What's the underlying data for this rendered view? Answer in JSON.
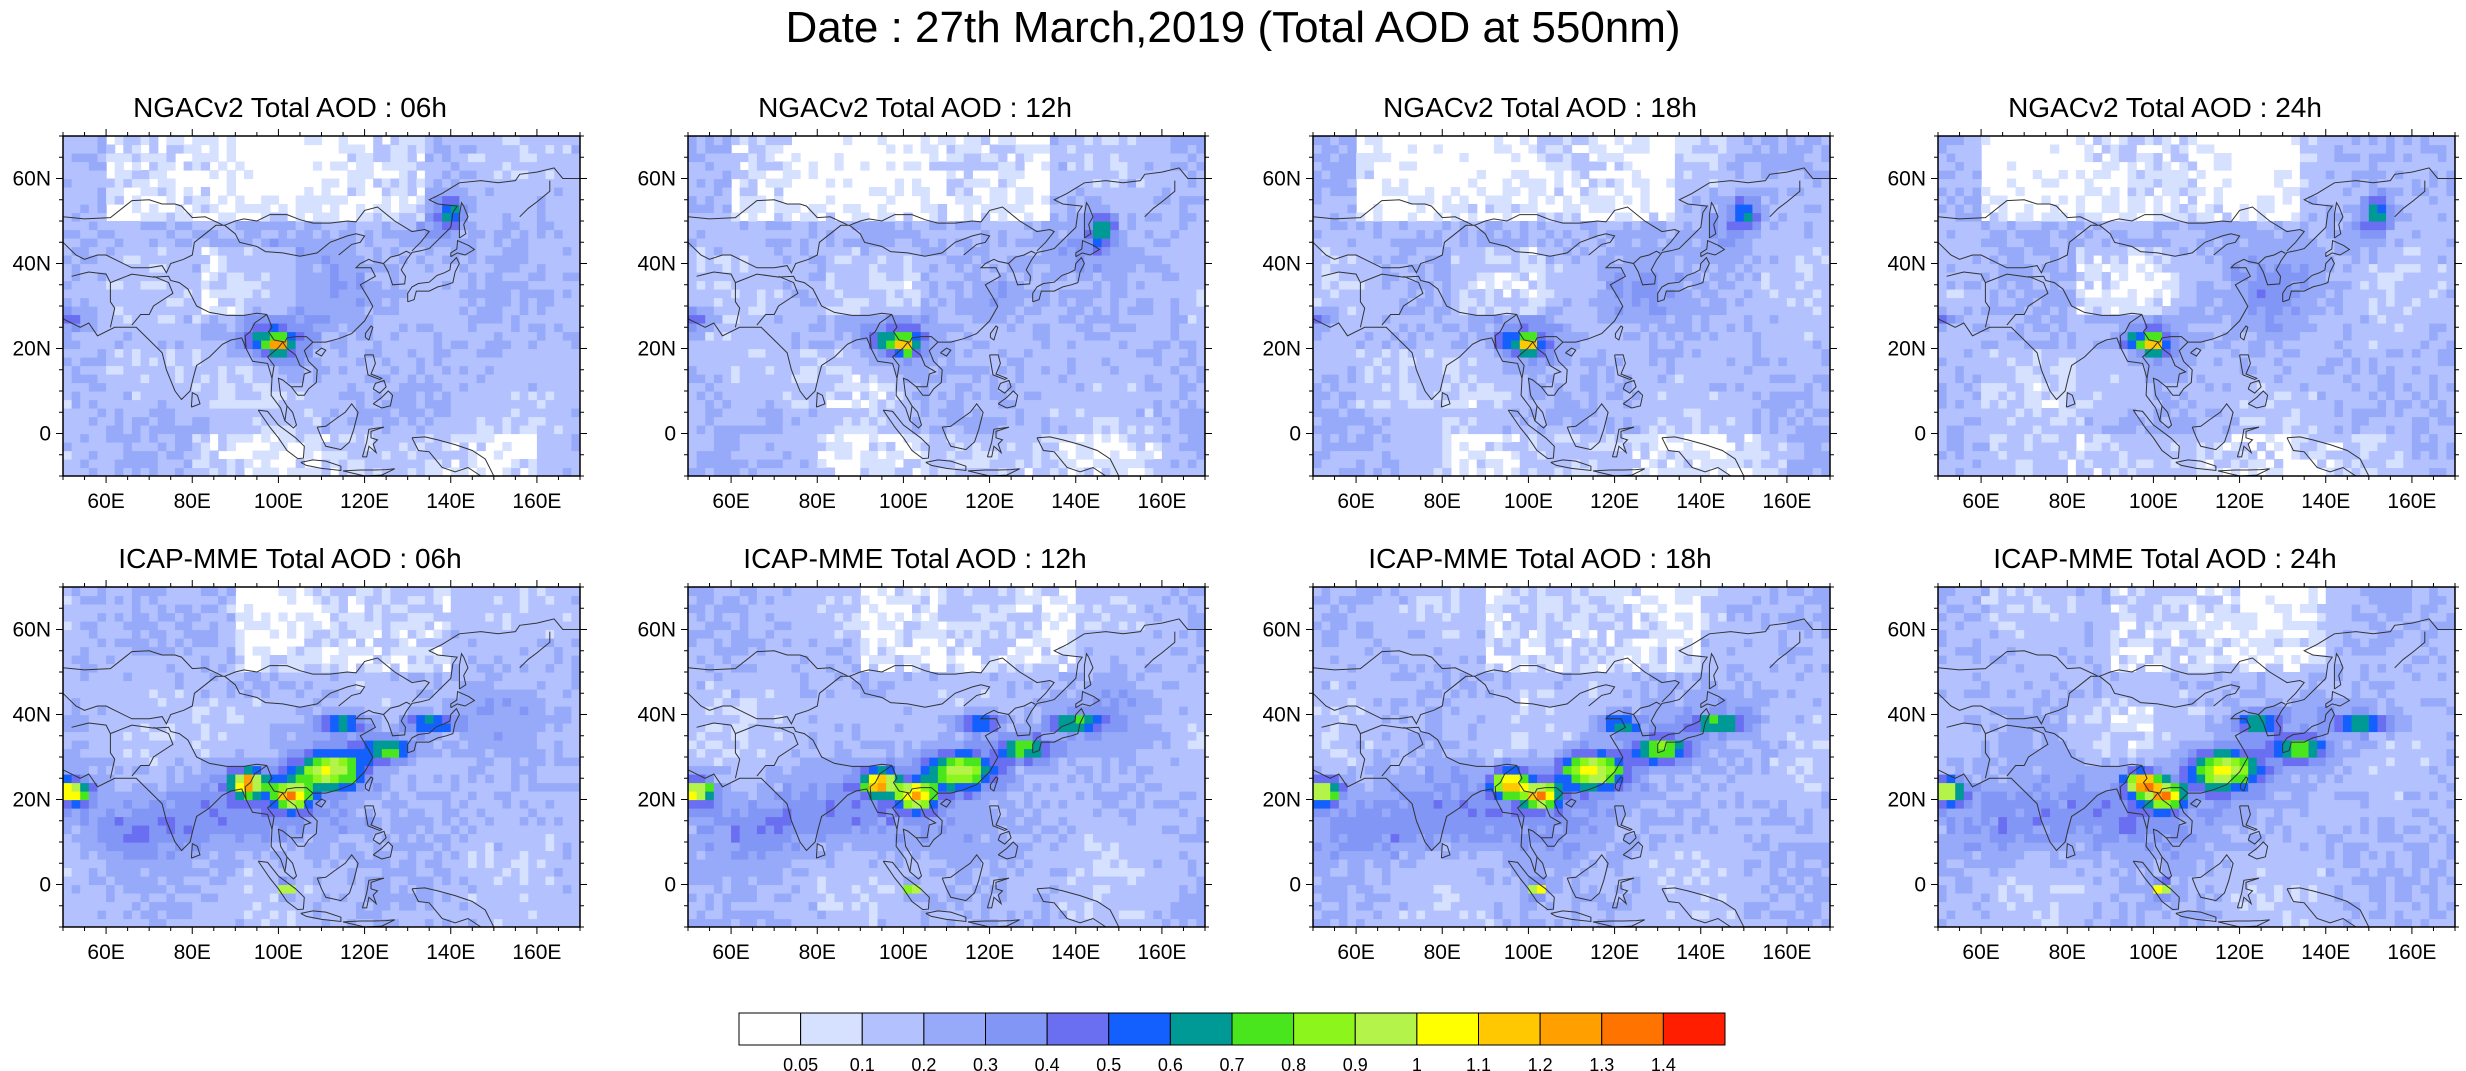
{
  "title": "Date : 27th March,2019 (Total AOD at 550nm)",
  "lat_labels": [
    "60N",
    "40N",
    "20N",
    "0"
  ],
  "lon_labels": [
    "60E",
    "80E",
    "100E",
    "120E",
    "140E",
    "160E"
  ],
  "panels": [
    {
      "title": "NGACv2 Total AOD : 06h",
      "model": "NGACv2",
      "hour": 6
    },
    {
      "title": "NGACv2 Total AOD : 12h",
      "model": "NGACv2",
      "hour": 12
    },
    {
      "title": "NGACv2 Total AOD : 18h",
      "model": "NGACv2",
      "hour": 18
    },
    {
      "title": "NGACv2 Total AOD : 24h",
      "model": "NGACv2",
      "hour": 24
    },
    {
      "title": "ICAP-MME Total AOD : 06h",
      "model": "ICAP-MME",
      "hour": 6
    },
    {
      "title": "ICAP-MME Total AOD : 12h",
      "model": "ICAP-MME",
      "hour": 12
    },
    {
      "title": "ICAP-MME Total AOD : 18h",
      "model": "ICAP-MME",
      "hour": 18
    },
    {
      "title": "ICAP-MME Total AOD : 24h",
      "model": "ICAP-MME",
      "hour": 24
    }
  ],
  "colorbar": {
    "labels": [
      "0.05",
      "0.1",
      "0.2",
      "0.3",
      "0.4",
      "0.5",
      "0.6",
      "0.7",
      "0.8",
      "0.9",
      "1",
      "1.1",
      "1.2",
      "1.3",
      "1.4"
    ],
    "colors": [
      "#ffffff",
      "#d6e0ff",
      "#b3c2ff",
      "#97aaf9",
      "#8296f5",
      "#6a6ef0",
      "#1460ff",
      "#009a96",
      "#49e61e",
      "#8cf51b",
      "#b4f44a",
      "#ffff00",
      "#ffc800",
      "#ffa000",
      "#ff7300",
      "#ff1e00"
    ]
  },
  "map_extent": {
    "lon": [
      50,
      170
    ],
    "lat": [
      -10,
      70
    ]
  }
}
